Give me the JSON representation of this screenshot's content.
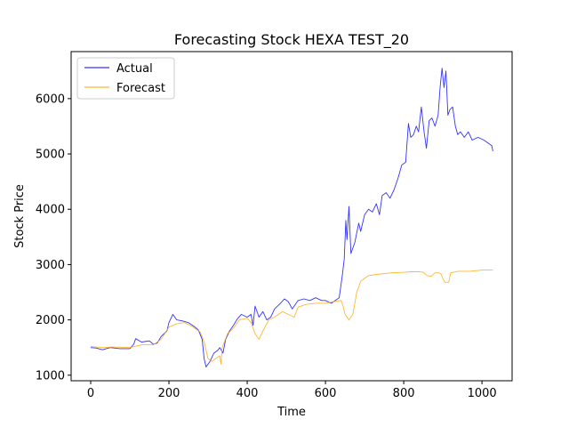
{
  "chart_data": {
    "type": "line",
    "title": "Forecasting Stock HEXA TEST_20",
    "xlabel": "Time",
    "ylabel": "Stock Price",
    "xlim": [
      -50,
      1077
    ],
    "ylim": [
      900,
      6850
    ],
    "xticks": [
      0,
      200,
      400,
      600,
      800,
      1000
    ],
    "yticks": [
      1000,
      2000,
      3000,
      4000,
      5000,
      6000
    ],
    "grid": false,
    "legend_position": "top-left",
    "series": [
      {
        "name": "Actual",
        "color": "#0000ff",
        "points": [
          [
            0,
            1500
          ],
          [
            15,
            1490
          ],
          [
            30,
            1460
          ],
          [
            50,
            1500
          ],
          [
            75,
            1480
          ],
          [
            100,
            1480
          ],
          [
            110,
            1560
          ],
          [
            115,
            1660
          ],
          [
            130,
            1600
          ],
          [
            150,
            1620
          ],
          [
            160,
            1560
          ],
          [
            170,
            1580
          ],
          [
            180,
            1700
          ],
          [
            195,
            1800
          ],
          [
            200,
            1950
          ],
          [
            210,
            2100
          ],
          [
            220,
            2000
          ],
          [
            235,
            1980
          ],
          [
            250,
            1950
          ],
          [
            265,
            1880
          ],
          [
            275,
            1820
          ],
          [
            285,
            1650
          ],
          [
            290,
            1300
          ],
          [
            295,
            1150
          ],
          [
            305,
            1250
          ],
          [
            315,
            1400
          ],
          [
            325,
            1450
          ],
          [
            330,
            1500
          ],
          [
            338,
            1400
          ],
          [
            345,
            1650
          ],
          [
            355,
            1800
          ],
          [
            365,
            1900
          ],
          [
            375,
            2020
          ],
          [
            385,
            2100
          ],
          [
            400,
            2050
          ],
          [
            410,
            2100
          ],
          [
            415,
            1900
          ],
          [
            420,
            2250
          ],
          [
            430,
            2050
          ],
          [
            440,
            2150
          ],
          [
            450,
            2000
          ],
          [
            460,
            2050
          ],
          [
            470,
            2200
          ],
          [
            485,
            2300
          ],
          [
            495,
            2380
          ],
          [
            505,
            2330
          ],
          [
            515,
            2200
          ],
          [
            530,
            2350
          ],
          [
            545,
            2380
          ],
          [
            560,
            2350
          ],
          [
            575,
            2400
          ],
          [
            590,
            2350
          ],
          [
            600,
            2350
          ],
          [
            615,
            2300
          ],
          [
            625,
            2350
          ],
          [
            635,
            2400
          ],
          [
            643,
            2800
          ],
          [
            648,
            3100
          ],
          [
            652,
            3800
          ],
          [
            655,
            3450
          ],
          [
            660,
            4050
          ],
          [
            665,
            3200
          ],
          [
            675,
            3400
          ],
          [
            685,
            3750
          ],
          [
            690,
            3600
          ],
          [
            700,
            3900
          ],
          [
            710,
            4000
          ],
          [
            720,
            3950
          ],
          [
            730,
            4100
          ],
          [
            738,
            3900
          ],
          [
            745,
            4250
          ],
          [
            755,
            4300
          ],
          [
            765,
            4200
          ],
          [
            775,
            4350
          ],
          [
            785,
            4550
          ],
          [
            795,
            4800
          ],
          [
            805,
            4850
          ],
          [
            812,
            5550
          ],
          [
            818,
            5300
          ],
          [
            825,
            5350
          ],
          [
            832,
            5500
          ],
          [
            838,
            5400
          ],
          [
            845,
            5850
          ],
          [
            852,
            5400
          ],
          [
            858,
            5100
          ],
          [
            865,
            5600
          ],
          [
            872,
            5650
          ],
          [
            880,
            5500
          ],
          [
            888,
            5700
          ],
          [
            893,
            6200
          ],
          [
            898,
            6550
          ],
          [
            903,
            6200
          ],
          [
            908,
            6500
          ],
          [
            913,
            5700
          ],
          [
            918,
            5800
          ],
          [
            925,
            5850
          ],
          [
            932,
            5500
          ],
          [
            938,
            5350
          ],
          [
            945,
            5400
          ],
          [
            955,
            5300
          ],
          [
            965,
            5400
          ],
          [
            975,
            5250
          ],
          [
            990,
            5300
          ],
          [
            1005,
            5250
          ],
          [
            1015,
            5200
          ],
          [
            1025,
            5150
          ],
          [
            1028,
            5050
          ]
        ]
      },
      {
        "name": "Forecast",
        "color": "#ffa500",
        "points": [
          [
            0,
            1520
          ],
          [
            30,
            1500
          ],
          [
            60,
            1510
          ],
          [
            100,
            1500
          ],
          [
            130,
            1550
          ],
          [
            160,
            1550
          ],
          [
            180,
            1650
          ],
          [
            200,
            1870
          ],
          [
            220,
            1930
          ],
          [
            240,
            1950
          ],
          [
            260,
            1880
          ],
          [
            280,
            1780
          ],
          [
            290,
            1600
          ],
          [
            300,
            1300
          ],
          [
            310,
            1250
          ],
          [
            320,
            1300
          ],
          [
            330,
            1350
          ],
          [
            333,
            1200
          ],
          [
            336,
            1500
          ],
          [
            350,
            1750
          ],
          [
            365,
            1850
          ],
          [
            380,
            2000
          ],
          [
            400,
            2030
          ],
          [
            410,
            1950
          ],
          [
            420,
            1750
          ],
          [
            430,
            1650
          ],
          [
            440,
            1800
          ],
          [
            455,
            2000
          ],
          [
            470,
            2050
          ],
          [
            490,
            2150
          ],
          [
            505,
            2100
          ],
          [
            520,
            2050
          ],
          [
            530,
            2230
          ],
          [
            550,
            2280
          ],
          [
            575,
            2300
          ],
          [
            600,
            2300
          ],
          [
            620,
            2330
          ],
          [
            640,
            2350
          ],
          [
            645,
            2250
          ],
          [
            650,
            2100
          ],
          [
            660,
            2000
          ],
          [
            670,
            2100
          ],
          [
            680,
            2500
          ],
          [
            690,
            2700
          ],
          [
            710,
            2800
          ],
          [
            740,
            2830
          ],
          [
            770,
            2850
          ],
          [
            800,
            2860
          ],
          [
            820,
            2870
          ],
          [
            840,
            2870
          ],
          [
            850,
            2860
          ],
          [
            860,
            2800
          ],
          [
            870,
            2790
          ],
          [
            880,
            2850
          ],
          [
            890,
            2850
          ],
          [
            895,
            2830
          ],
          [
            900,
            2750
          ],
          [
            905,
            2680
          ],
          [
            915,
            2680
          ],
          [
            920,
            2850
          ],
          [
            940,
            2880
          ],
          [
            970,
            2880
          ],
          [
            1000,
            2900
          ],
          [
            1028,
            2900
          ]
        ]
      }
    ]
  }
}
